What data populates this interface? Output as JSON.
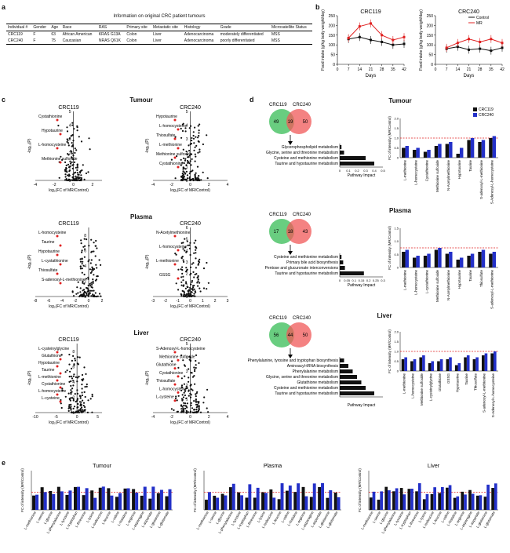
{
  "panel_labels": {
    "a": "a",
    "b": "b",
    "c": "c",
    "d": "d",
    "e": "e"
  },
  "table": {
    "title": "Information on original CRC patient tumours",
    "headers": [
      "Individual #",
      "Gender",
      "Age",
      "Race",
      "RAS",
      "Primary site",
      "Metastatic site",
      "Histology",
      "Grade",
      "Microsatellite Status"
    ],
    "rows": [
      [
        "CRC119",
        "F",
        "63",
        "African American",
        "KRAS G13A",
        "Colon",
        "Liver",
        "Adenocarcinoma",
        "moderately differentiated",
        "MSS"
      ],
      [
        "CRC240",
        "F",
        "75",
        "Caucasian",
        "NRAS Q61K",
        "Colon",
        "Liver",
        "Adenocarcinoma",
        "poorly differentiated",
        "MSS"
      ]
    ]
  },
  "sections": {
    "tumour": "Tumour",
    "plasma": "Plasma",
    "liver": "Liver"
  },
  "sample_titles": {
    "crc119": "CRC119",
    "crc240": "CRC240"
  },
  "axis": {
    "volcano_x": "log₂(FC of MR/Control)",
    "volcano_y": "-log₁₀(P)",
    "food_y": "Food intake (g/kg body weight/day)",
    "days": "Days",
    "pathway_impact": "Pathway Impact",
    "fc_y": "FC of intensity (MR/Control)"
  },
  "food_legend": {
    "control": "Control",
    "mr": "MR"
  },
  "colors": {
    "control": "#111111",
    "mr": "#e02020",
    "crc119": "#111111",
    "crc240": "#2330c8",
    "venn_green": "#4fc46a",
    "venn_red": "#f05858"
  },
  "chart_data": [
    {
      "type": "line",
      "title": "CRC119",
      "xlabel": "Days",
      "ylabel": "Food intake (g/kg body weight/day)",
      "x": [
        7,
        14,
        21,
        28,
        35,
        42
      ],
      "xlim": [
        0,
        42
      ],
      "ylim": [
        0,
        250
      ],
      "yticks": [
        0,
        50,
        100,
        150,
        200,
        250
      ],
      "series": [
        {
          "name": "Control",
          "values": [
            130,
            140,
            125,
            115,
            100,
            105
          ]
        },
        {
          "name": "MR",
          "values": [
            135,
            195,
            210,
            150,
            125,
            140
          ]
        }
      ]
    },
    {
      "type": "line",
      "title": "CRC240",
      "xlabel": "Days",
      "ylabel": "Food intake (g/kg body weight/day)",
      "x": [
        7,
        14,
        21,
        28,
        35,
        42
      ],
      "xlim": [
        0,
        42
      ],
      "ylim": [
        0,
        250
      ],
      "yticks": [
        0,
        50,
        100,
        150,
        200,
        250
      ],
      "series": [
        {
          "name": "Control",
          "values": [
            80,
            90,
            75,
            80,
            70,
            85
          ]
        },
        {
          "name": "MR",
          "values": [
            85,
            110,
            130,
            115,
            130,
            110
          ]
        }
      ]
    }
  ],
  "volcanoes": {
    "tumour_119": {
      "xticks": [
        -4,
        -2,
        0,
        2
      ],
      "yticks": [
        0,
        1,
        2,
        3,
        4,
        5
      ],
      "labels": [
        "Cystathionine",
        "Hypotaurine",
        "L-homocysteine",
        "Methionine sulfoxide"
      ]
    },
    "tumour_240": {
      "xticks": [
        -4,
        -2,
        0,
        2,
        4
      ],
      "yticks": [
        0,
        1,
        2,
        3,
        4,
        5
      ],
      "labels": [
        "Hypotaurine",
        "L-homocysteine",
        "Thiosulfate",
        "L-methionine",
        "Methionine sulfoxide",
        "Cystathionine"
      ]
    },
    "plasma_119": {
      "xticks": [
        -8,
        -6,
        -4,
        -2,
        0,
        2
      ],
      "yticks": [
        0,
        2,
        4,
        6,
        8
      ],
      "labels": [
        "L-homocysteine",
        "Taurine",
        "Hypotaurine",
        "L-cystathionine",
        "Thiosulfate",
        "S-adenosyl-L-methionine"
      ]
    },
    "plasma_240": {
      "xticks": [
        -3,
        -2,
        -1,
        0,
        1,
        2,
        3
      ],
      "yticks": [
        0,
        1,
        2,
        3,
        4,
        5,
        6
      ],
      "labels": [
        "N-Acetylmethionine",
        "L-homocysteine",
        "L-methionine",
        "GSSG"
      ]
    },
    "liver_119": {
      "xticks": [
        -10,
        -5,
        0,
        5
      ],
      "yticks": [
        0,
        2,
        4,
        6,
        8
      ],
      "labels": [
        "L-cysteinylglycine",
        "Glutathione",
        "Hypotaurine",
        "Taurine",
        "L-methionine",
        "Cystathionine",
        "L-homocysteine",
        "L-cysteine"
      ]
    },
    "liver_240": {
      "xticks": [
        -4,
        -2,
        0,
        2,
        4
      ],
      "yticks": [
        0,
        1,
        2,
        3,
        4,
        5
      ],
      "labels": [
        "S-Adenosyl-L-homocysteine",
        "Methionine sulfoxide",
        "Glutathione",
        "Cystathionine",
        "Thiosulfate",
        "L-homocysteine",
        "L-cysteine"
      ]
    }
  },
  "venns": {
    "tumour": {
      "left": "CRC119",
      "right": "CRC240",
      "left_only": "49",
      "overlap": "19",
      "right_only": "50"
    },
    "plasma": {
      "left": "CRC119",
      "right": "CRC240",
      "left_only": "17",
      "overlap": "18",
      "right_only": "43"
    },
    "liver": {
      "left": "CRC119",
      "right": "CRC240",
      "left_only": "56",
      "overlap": "44",
      "right_only": "50"
    }
  },
  "pathways": {
    "tumour": {
      "names": [
        "Glycerophospholipid metabolism",
        "Glycine, serine and threonine metabolism",
        "Cysteine and methionine metabolism",
        "Taurine and hypotaurine metabolism"
      ],
      "values": [
        0.02,
        0.05,
        0.3,
        0.4
      ],
      "ticks": [
        "0",
        "0.1",
        "0.2",
        "0.3",
        "0.4",
        "0.5"
      ]
    },
    "plasma": {
      "names": [
        "Cysteine and methionine metabolism",
        "Primary bile acid biosynthesis",
        "Pentose and glucuronate interconversions",
        "Taurine and hypotaurine metabolism"
      ],
      "values": [
        0.02,
        0.04,
        0.06,
        0.28
      ],
      "ticks": [
        "0",
        "0.05",
        "0.1",
        "0.15",
        "0.2",
        "0.25",
        "0.3"
      ]
    },
    "liver": {
      "names": [
        "Phenylalanine, tyrosine and tryptophan biosynthesis",
        "Aminoacyl-tRNA biosynthesis",
        "Phenylalanine metabolism",
        "Glycine, serine and threonine metabolism",
        "Glutathione metabolism",
        "Cysteine and methionine metabolism",
        "Taurine and hypotaurine metabolism"
      ],
      "values": [
        0.05,
        0.1,
        0.15,
        0.2,
        0.25,
        0.3,
        0.4
      ],
      "ticks": []
    }
  },
  "fc_legend": {
    "crc119": "CRC119",
    "crc240": "CRC240"
  },
  "fc_bars": {
    "tumour": {
      "metabolites": [
        "L-methionine",
        "L-homocysteine",
        "Cystathionine",
        "Methionine sulfoxide",
        "N-Acetylmethionine",
        "Hypotaurine",
        "Taurine",
        "S-adenosyl-L-methionine",
        "S-Adenosyl-L-homocysteine"
      ],
      "crc119": [
        0.5,
        0.4,
        0.3,
        0.6,
        0.7,
        0.2,
        0.9,
        0.8,
        1.0
      ],
      "crc240": [
        0.6,
        0.5,
        0.4,
        0.7,
        0.8,
        0.5,
        1.0,
        0.9,
        1.1
      ],
      "yticks": [
        "0",
        "0.5",
        "1.0",
        "1.5",
        "2.0"
      ]
    },
    "plasma": {
      "metabolites": [
        "L-methionine",
        "L-homocysteine",
        "L-cystathionine",
        "Methionine sulfoxide",
        "N-Acetylmethionine",
        "Hypotaurine",
        "Taurine",
        "Thiosulfate",
        "S-adenosyl-L-methionine"
      ],
      "crc119": [
        0.8,
        0.5,
        0.6,
        0.9,
        0.7,
        0.4,
        0.6,
        0.8,
        0.7
      ],
      "crc240": [
        0.9,
        0.6,
        0.7,
        1.0,
        0.8,
        0.5,
        0.7,
        0.9,
        0.8
      ],
      "yticks": [
        "0",
        "0.5",
        "1.0",
        "1.5"
      ]
    },
    "liver": {
      "metabolites": [
        "L-methionine",
        "L-homocysteine",
        "Methionine sulfoxide",
        "L-cysteinylglycine",
        "Glutathione",
        "GSSG",
        "Hypotaurine",
        "Taurine",
        "Thiosulfate",
        "S-adenosyl-L-methionine",
        "S-Adenosyl-L-homocysteine"
      ],
      "crc119": [
        0.6,
        0.5,
        0.7,
        0.4,
        0.5,
        0.6,
        0.3,
        0.7,
        0.6,
        0.8,
        0.9
      ],
      "crc240": [
        0.7,
        0.6,
        0.8,
        0.5,
        0.6,
        0.7,
        0.4,
        0.8,
        0.7,
        0.9,
        1.0
      ],
      "yticks": [
        "0",
        "0.5",
        "1.0",
        "1.5",
        "2.0"
      ]
    }
  },
  "panel_e": {
    "tumour": {
      "title": "Tumour",
      "labels": [
        "L-methionine",
        "L-serine",
        "L-glycine",
        "L-phenylalanine",
        "L-tyrosine",
        "L-tryptophan",
        "L-threonine",
        "L-lysine",
        "L-isoleucine",
        "L-leucine",
        "L-valine",
        "L-histidine",
        "L-arginine",
        "L-asparagine",
        "L-aspartate",
        "L-glutamine",
        "L-glutamate"
      ]
    },
    "plasma": {
      "title": "Plasma",
      "labels": [
        "L-methionine",
        "L-serine",
        "L-glycine",
        "L-phenylalanine",
        "L-tyrosine",
        "L-tryptophan",
        "L-threonine",
        "L-lysine",
        "L-isoleucine",
        "L-leucine",
        "L-valine",
        "L-histidine",
        "L-arginine",
        "L-asparagine",
        "L-aspartate",
        "L-glutamine",
        "L-glutamate"
      ]
    },
    "liver": {
      "title": "Liver",
      "labels": [
        "L-methionine",
        "L-serine",
        "L-glycine",
        "L-phenylalanine",
        "L-tyrosine",
        "L-tryptophan",
        "L-threonine",
        "L-lysine",
        "L-isoleucine",
        "L-leucine",
        "L-valine",
        "L-histidine",
        "L-arginine",
        "L-asparagine",
        "L-aspartate",
        "L-glutamine",
        "L-glutamate"
      ]
    }
  }
}
